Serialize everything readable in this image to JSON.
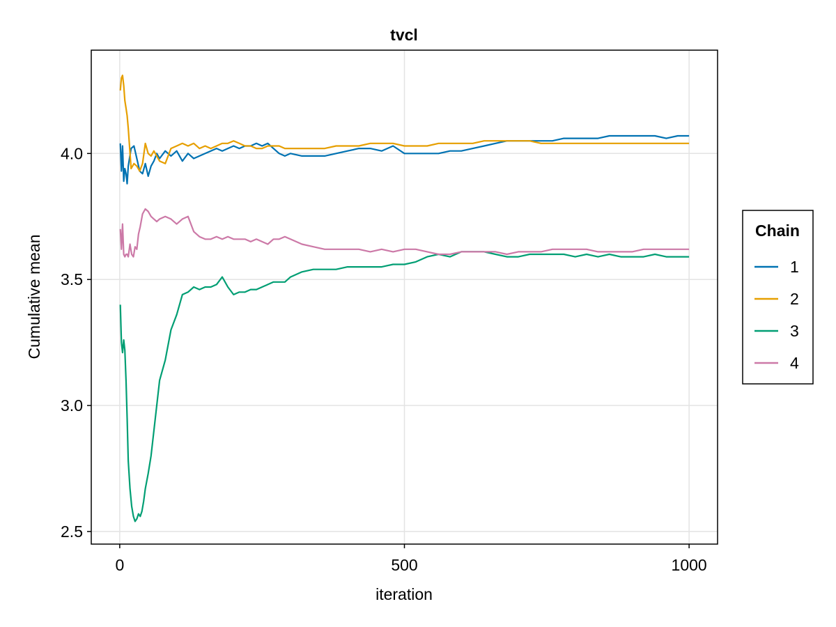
{
  "chart_data": {
    "type": "line",
    "title": "tvcl",
    "xlabel": "iteration",
    "ylabel": "Cumulative mean",
    "xlim": [
      -50,
      1050
    ],
    "ylim": [
      2.45,
      4.41
    ],
    "xticks": [
      0,
      500,
      1000
    ],
    "xtick_labels": [
      "0",
      "500",
      "1000"
    ],
    "yticks": [
      2.5,
      3.0,
      3.5,
      4.0
    ],
    "ytick_labels": [
      "2.5",
      "3.0",
      "3.5",
      "4.0"
    ],
    "grid": true,
    "legend": {
      "title": "Chain",
      "placement": "right"
    },
    "series": [
      {
        "name": "1",
        "color": "#0072b2",
        "x": [
          1,
          3,
          5,
          7,
          9,
          11,
          13,
          15,
          20,
          25,
          30,
          35,
          40,
          45,
          50,
          55,
          60,
          65,
          70,
          80,
          90,
          100,
          110,
          120,
          130,
          140,
          150,
          160,
          170,
          180,
          190,
          200,
          210,
          220,
          230,
          240,
          250,
          260,
          270,
          280,
          290,
          300,
          320,
          340,
          360,
          380,
          400,
          420,
          440,
          460,
          480,
          500,
          520,
          540,
          560,
          580,
          600,
          620,
          640,
          660,
          680,
          700,
          720,
          740,
          760,
          780,
          800,
          820,
          840,
          860,
          880,
          900,
          920,
          940,
          960,
          980,
          1000
        ],
        "values": [
          4.04,
          3.93,
          4.03,
          3.89,
          3.94,
          3.92,
          3.88,
          3.95,
          4.02,
          4.03,
          3.98,
          3.93,
          3.92,
          3.96,
          3.91,
          3.95,
          3.97,
          4.0,
          3.98,
          4.01,
          3.99,
          4.01,
          3.97,
          4.0,
          3.98,
          3.99,
          4.0,
          4.01,
          4.02,
          4.01,
          4.02,
          4.03,
          4.02,
          4.03,
          4.03,
          4.04,
          4.03,
          4.04,
          4.02,
          4.0,
          3.99,
          4.0,
          3.99,
          3.99,
          3.99,
          4.0,
          4.01,
          4.02,
          4.02,
          4.01,
          4.03,
          4.0,
          4.0,
          4.0,
          4.0,
          4.01,
          4.01,
          4.02,
          4.03,
          4.04,
          4.05,
          4.05,
          4.05,
          4.05,
          4.05,
          4.06,
          4.06,
          4.06,
          4.06,
          4.07,
          4.07,
          4.07,
          4.07,
          4.07,
          4.06,
          4.07,
          4.07
        ]
      },
      {
        "name": "2",
        "color": "#e69f00",
        "x": [
          1,
          3,
          5,
          7,
          9,
          11,
          13,
          15,
          20,
          25,
          30,
          35,
          40,
          45,
          50,
          55,
          60,
          65,
          70,
          80,
          90,
          100,
          110,
          120,
          130,
          140,
          150,
          160,
          170,
          180,
          190,
          200,
          210,
          220,
          230,
          240,
          250,
          260,
          270,
          280,
          290,
          300,
          320,
          340,
          360,
          380,
          400,
          420,
          440,
          460,
          480,
          500,
          520,
          540,
          560,
          580,
          600,
          620,
          640,
          660,
          680,
          700,
          720,
          740,
          760,
          780,
          800,
          820,
          840,
          860,
          880,
          900,
          920,
          940,
          960,
          980,
          1000
        ],
        "values": [
          4.25,
          4.3,
          4.31,
          4.27,
          4.21,
          4.18,
          4.15,
          4.1,
          3.94,
          3.96,
          3.95,
          3.93,
          3.96,
          4.04,
          4.0,
          3.99,
          4.01,
          3.99,
          3.97,
          3.96,
          4.02,
          4.03,
          4.04,
          4.03,
          4.04,
          4.02,
          4.03,
          4.02,
          4.03,
          4.04,
          4.04,
          4.05,
          4.04,
          4.03,
          4.03,
          4.02,
          4.02,
          4.03,
          4.03,
          4.03,
          4.02,
          4.02,
          4.02,
          4.02,
          4.02,
          4.03,
          4.03,
          4.03,
          4.04,
          4.04,
          4.04,
          4.03,
          4.03,
          4.03,
          4.04,
          4.04,
          4.04,
          4.04,
          4.05,
          4.05,
          4.05,
          4.05,
          4.05,
          4.04,
          4.04,
          4.04,
          4.04,
          4.04,
          4.04,
          4.04,
          4.04,
          4.04,
          4.04,
          4.04,
          4.04,
          4.04,
          4.04
        ]
      },
      {
        "name": "3",
        "color": "#009e73",
        "x": [
          1,
          3,
          5,
          7,
          9,
          11,
          13,
          15,
          18,
          21,
          24,
          27,
          30,
          33,
          36,
          39,
          42,
          45,
          50,
          55,
          60,
          65,
          70,
          80,
          90,
          100,
          110,
          120,
          130,
          140,
          150,
          160,
          170,
          180,
          190,
          200,
          210,
          220,
          230,
          240,
          250,
          260,
          270,
          280,
          290,
          300,
          320,
          340,
          360,
          380,
          400,
          420,
          440,
          460,
          480,
          500,
          520,
          540,
          560,
          580,
          600,
          620,
          640,
          660,
          680,
          700,
          720,
          740,
          760,
          780,
          800,
          820,
          840,
          860,
          880,
          900,
          920,
          940,
          960,
          980,
          1000
        ],
        "values": [
          3.4,
          3.25,
          3.21,
          3.26,
          3.22,
          3.1,
          2.95,
          2.78,
          2.67,
          2.6,
          2.56,
          2.54,
          2.55,
          2.57,
          2.56,
          2.58,
          2.62,
          2.67,
          2.73,
          2.8,
          2.9,
          3.0,
          3.1,
          3.18,
          3.3,
          3.36,
          3.44,
          3.45,
          3.47,
          3.46,
          3.47,
          3.47,
          3.48,
          3.51,
          3.47,
          3.44,
          3.45,
          3.45,
          3.46,
          3.46,
          3.47,
          3.48,
          3.49,
          3.49,
          3.49,
          3.51,
          3.53,
          3.54,
          3.54,
          3.54,
          3.55,
          3.55,
          3.55,
          3.55,
          3.56,
          3.56,
          3.57,
          3.59,
          3.6,
          3.59,
          3.61,
          3.61,
          3.61,
          3.6,
          3.59,
          3.59,
          3.6,
          3.6,
          3.6,
          3.6,
          3.59,
          3.6,
          3.59,
          3.6,
          3.59,
          3.59,
          3.59,
          3.6,
          3.59,
          3.59,
          3.59
        ]
      },
      {
        "name": "4",
        "color": "#cc79a7",
        "x": [
          1,
          3,
          5,
          7,
          9,
          11,
          13,
          15,
          18,
          21,
          24,
          27,
          30,
          33,
          36,
          40,
          45,
          50,
          55,
          60,
          65,
          70,
          80,
          90,
          100,
          110,
          120,
          130,
          140,
          150,
          160,
          170,
          180,
          190,
          200,
          210,
          220,
          230,
          240,
          250,
          260,
          270,
          280,
          290,
          300,
          320,
          340,
          360,
          380,
          400,
          420,
          440,
          460,
          480,
          500,
          520,
          540,
          560,
          580,
          600,
          620,
          640,
          660,
          680,
          700,
          720,
          740,
          760,
          780,
          800,
          820,
          840,
          860,
          880,
          900,
          920,
          940,
          960,
          980,
          1000
        ],
        "values": [
          3.7,
          3.62,
          3.72,
          3.6,
          3.59,
          3.6,
          3.6,
          3.59,
          3.64,
          3.6,
          3.59,
          3.63,
          3.62,
          3.68,
          3.71,
          3.76,
          3.78,
          3.77,
          3.75,
          3.74,
          3.73,
          3.74,
          3.75,
          3.74,
          3.72,
          3.74,
          3.75,
          3.69,
          3.67,
          3.66,
          3.66,
          3.67,
          3.66,
          3.67,
          3.66,
          3.66,
          3.66,
          3.65,
          3.66,
          3.65,
          3.64,
          3.66,
          3.66,
          3.67,
          3.66,
          3.64,
          3.63,
          3.62,
          3.62,
          3.62,
          3.62,
          3.61,
          3.62,
          3.61,
          3.62,
          3.62,
          3.61,
          3.6,
          3.6,
          3.61,
          3.61,
          3.61,
          3.61,
          3.6,
          3.61,
          3.61,
          3.61,
          3.62,
          3.62,
          3.62,
          3.62,
          3.61,
          3.61,
          3.61,
          3.61,
          3.62,
          3.62,
          3.62,
          3.62,
          3.62
        ]
      }
    ]
  }
}
